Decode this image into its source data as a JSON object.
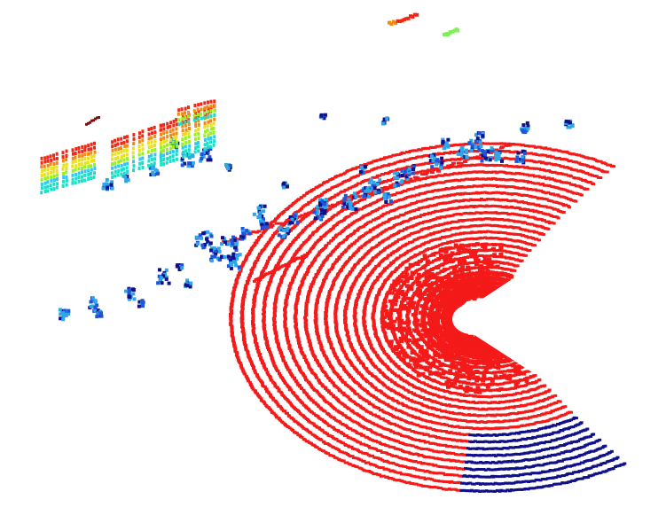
{
  "scene": {
    "kind": "lidar-point-cloud",
    "colormap": "jet",
    "background": "#ffffff",
    "colors": {
      "ground": "#f41a1a",
      "ground_far": "#10108a",
      "low_object": "#1f55d8",
      "mid_object": "#2fa6e8",
      "building_low": "#18e0c8",
      "building_mid": "#9cf020",
      "building_high": "#f08a10",
      "building_top": "#f02818",
      "green_patch": "#7ef05a"
    }
  }
}
